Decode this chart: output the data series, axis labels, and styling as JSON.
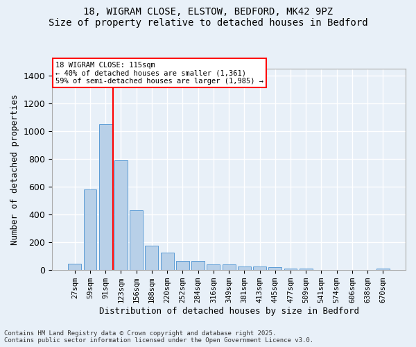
{
  "title_line1": "18, WIGRAM CLOSE, ELSTOW, BEDFORD, MK42 9PZ",
  "title_line2": "Size of property relative to detached houses in Bedford",
  "xlabel": "Distribution of detached houses by size in Bedford",
  "ylabel": "Number of detached properties",
  "categories": [
    "27sqm",
    "59sqm",
    "91sqm",
    "123sqm",
    "156sqm",
    "188sqm",
    "220sqm",
    "252sqm",
    "284sqm",
    "316sqm",
    "349sqm",
    "381sqm",
    "413sqm",
    "445sqm",
    "477sqm",
    "509sqm",
    "541sqm",
    "574sqm",
    "606sqm",
    "638sqm",
    "670sqm"
  ],
  "values": [
    45,
    583,
    1050,
    793,
    430,
    178,
    128,
    68,
    68,
    42,
    42,
    27,
    25,
    20,
    13,
    10,
    0,
    0,
    0,
    0,
    13
  ],
  "bar_color": "#b8d0e8",
  "bar_edge_color": "#5b9bd5",
  "background_color": "#e8f0f8",
  "grid_color": "#ffffff",
  "vline_x": 3,
  "vline_color": "red",
  "annotation_text": "18 WIGRAM CLOSE: 115sqm\n← 40% of detached houses are smaller (1,361)\n59% of semi-detached houses are larger (1,985) →",
  "annotation_box_color": "white",
  "annotation_box_edge": "red",
  "ylim": [
    0,
    1450
  ],
  "yticks": [
    0,
    200,
    400,
    600,
    800,
    1000,
    1200,
    1400
  ],
  "footer_line1": "Contains HM Land Registry data © Crown copyright and database right 2025.",
  "footer_line2": "Contains public sector information licensed under the Open Government Licence v3.0."
}
